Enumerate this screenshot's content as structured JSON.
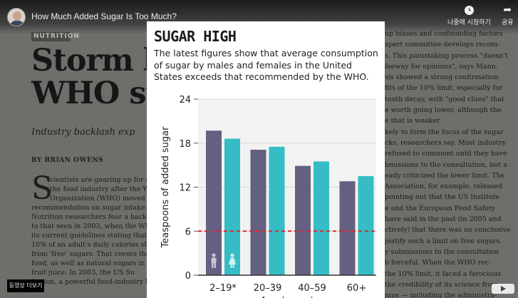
{
  "video": {
    "title": "How Much Added Sugar Is Too Much?",
    "watch_later_label": "나중에 시청하기",
    "share_label": "공유",
    "more_videos_label": "동영상 더보기"
  },
  "magazine": {
    "section_tag": "NUTRITION",
    "headline_lines": [
      "Storm b",
      "WHO su"
    ],
    "deck": "Industry backlash exp",
    "byline": "BY BRIAN OWENS",
    "dropcap": "S",
    "body_left": [
      "cientists are gearing up for a f",
      "the food industry after the Wo",
      "Organization (WHO) moved",
      "recommendation on sugar intake.",
      "Nutrition researchers fear a backla",
      "to that seen in 2003, when the WHO",
      "its current guidelines stating that no",
      "10% of an adult's daily calories sh",
      "from 'free' sugars. That covers thos",
      "food, as well as natural sugars in ho",
      "fruit juice. In 2003, the US Su",
      "ization, a powerful food-industry lo"
    ],
    "body_right": [
      "up biases and confounding factors",
      "xpert committee develops recom-",
      "s. This painstaking process \"doesn't",
      "leeway for opinions\", says Mann.",
      "sis showed a strong confirmation",
      "fits of the 10% limit, especially for",
      "tooth decay, with \"good clues\" that",
      "e worth going lower, although the",
      "e that is weaker.",
      "kely to form the focus of the sugar",
      "cks, researchers say. Most industry",
      "refused to comment until they have",
      "bmissions to the consultation, but a",
      "eady criticized the lower limit. The",
      "Association, for example, released",
      "pointing out that the US Institute",
      "e and the European Food Safety",
      "have said in the past (in 2005 and",
      "ctively) that there was no conclusive",
      "justify such a limit on free sugars.",
      "y submissions to the consultation",
      "b forceful. When the WHO rec-",
      "the 10% limit, it faced a ferocious",
      "the credibility of its science from",
      "mps — including the administra-",
      "US President George W. Bush. The"
    ]
  },
  "card": {
    "title": "SUGAR HIGH",
    "subtitle_lines": [
      "The latest figures show that average consumption",
      "of sugar by males and females in the United",
      "States exceeds that recommended by the WHO."
    ]
  },
  "chart_data": {
    "type": "bar",
    "ylabel": "Teaspoons of added sugar",
    "xlabel": "Age (years)",
    "categories": [
      "2–19*",
      "20–39",
      "40–59",
      "60+"
    ],
    "series": [
      {
        "name": "male",
        "icon": "male-figure-icon",
        "color": "#646082",
        "values": [
          19.7,
          17.1,
          14.9,
          12.8
        ]
      },
      {
        "name": "female",
        "icon": "female-figure-icon",
        "color": "#35bcc4",
        "values": [
          18.6,
          17.5,
          15.5,
          13.5
        ]
      }
    ],
    "ylim": [
      0,
      24
    ],
    "yticks": [
      0,
      6,
      12,
      18,
      24
    ],
    "grid": true,
    "reference_line": {
      "value": 6,
      "color": "#e0262b",
      "style": "dashed"
    }
  }
}
